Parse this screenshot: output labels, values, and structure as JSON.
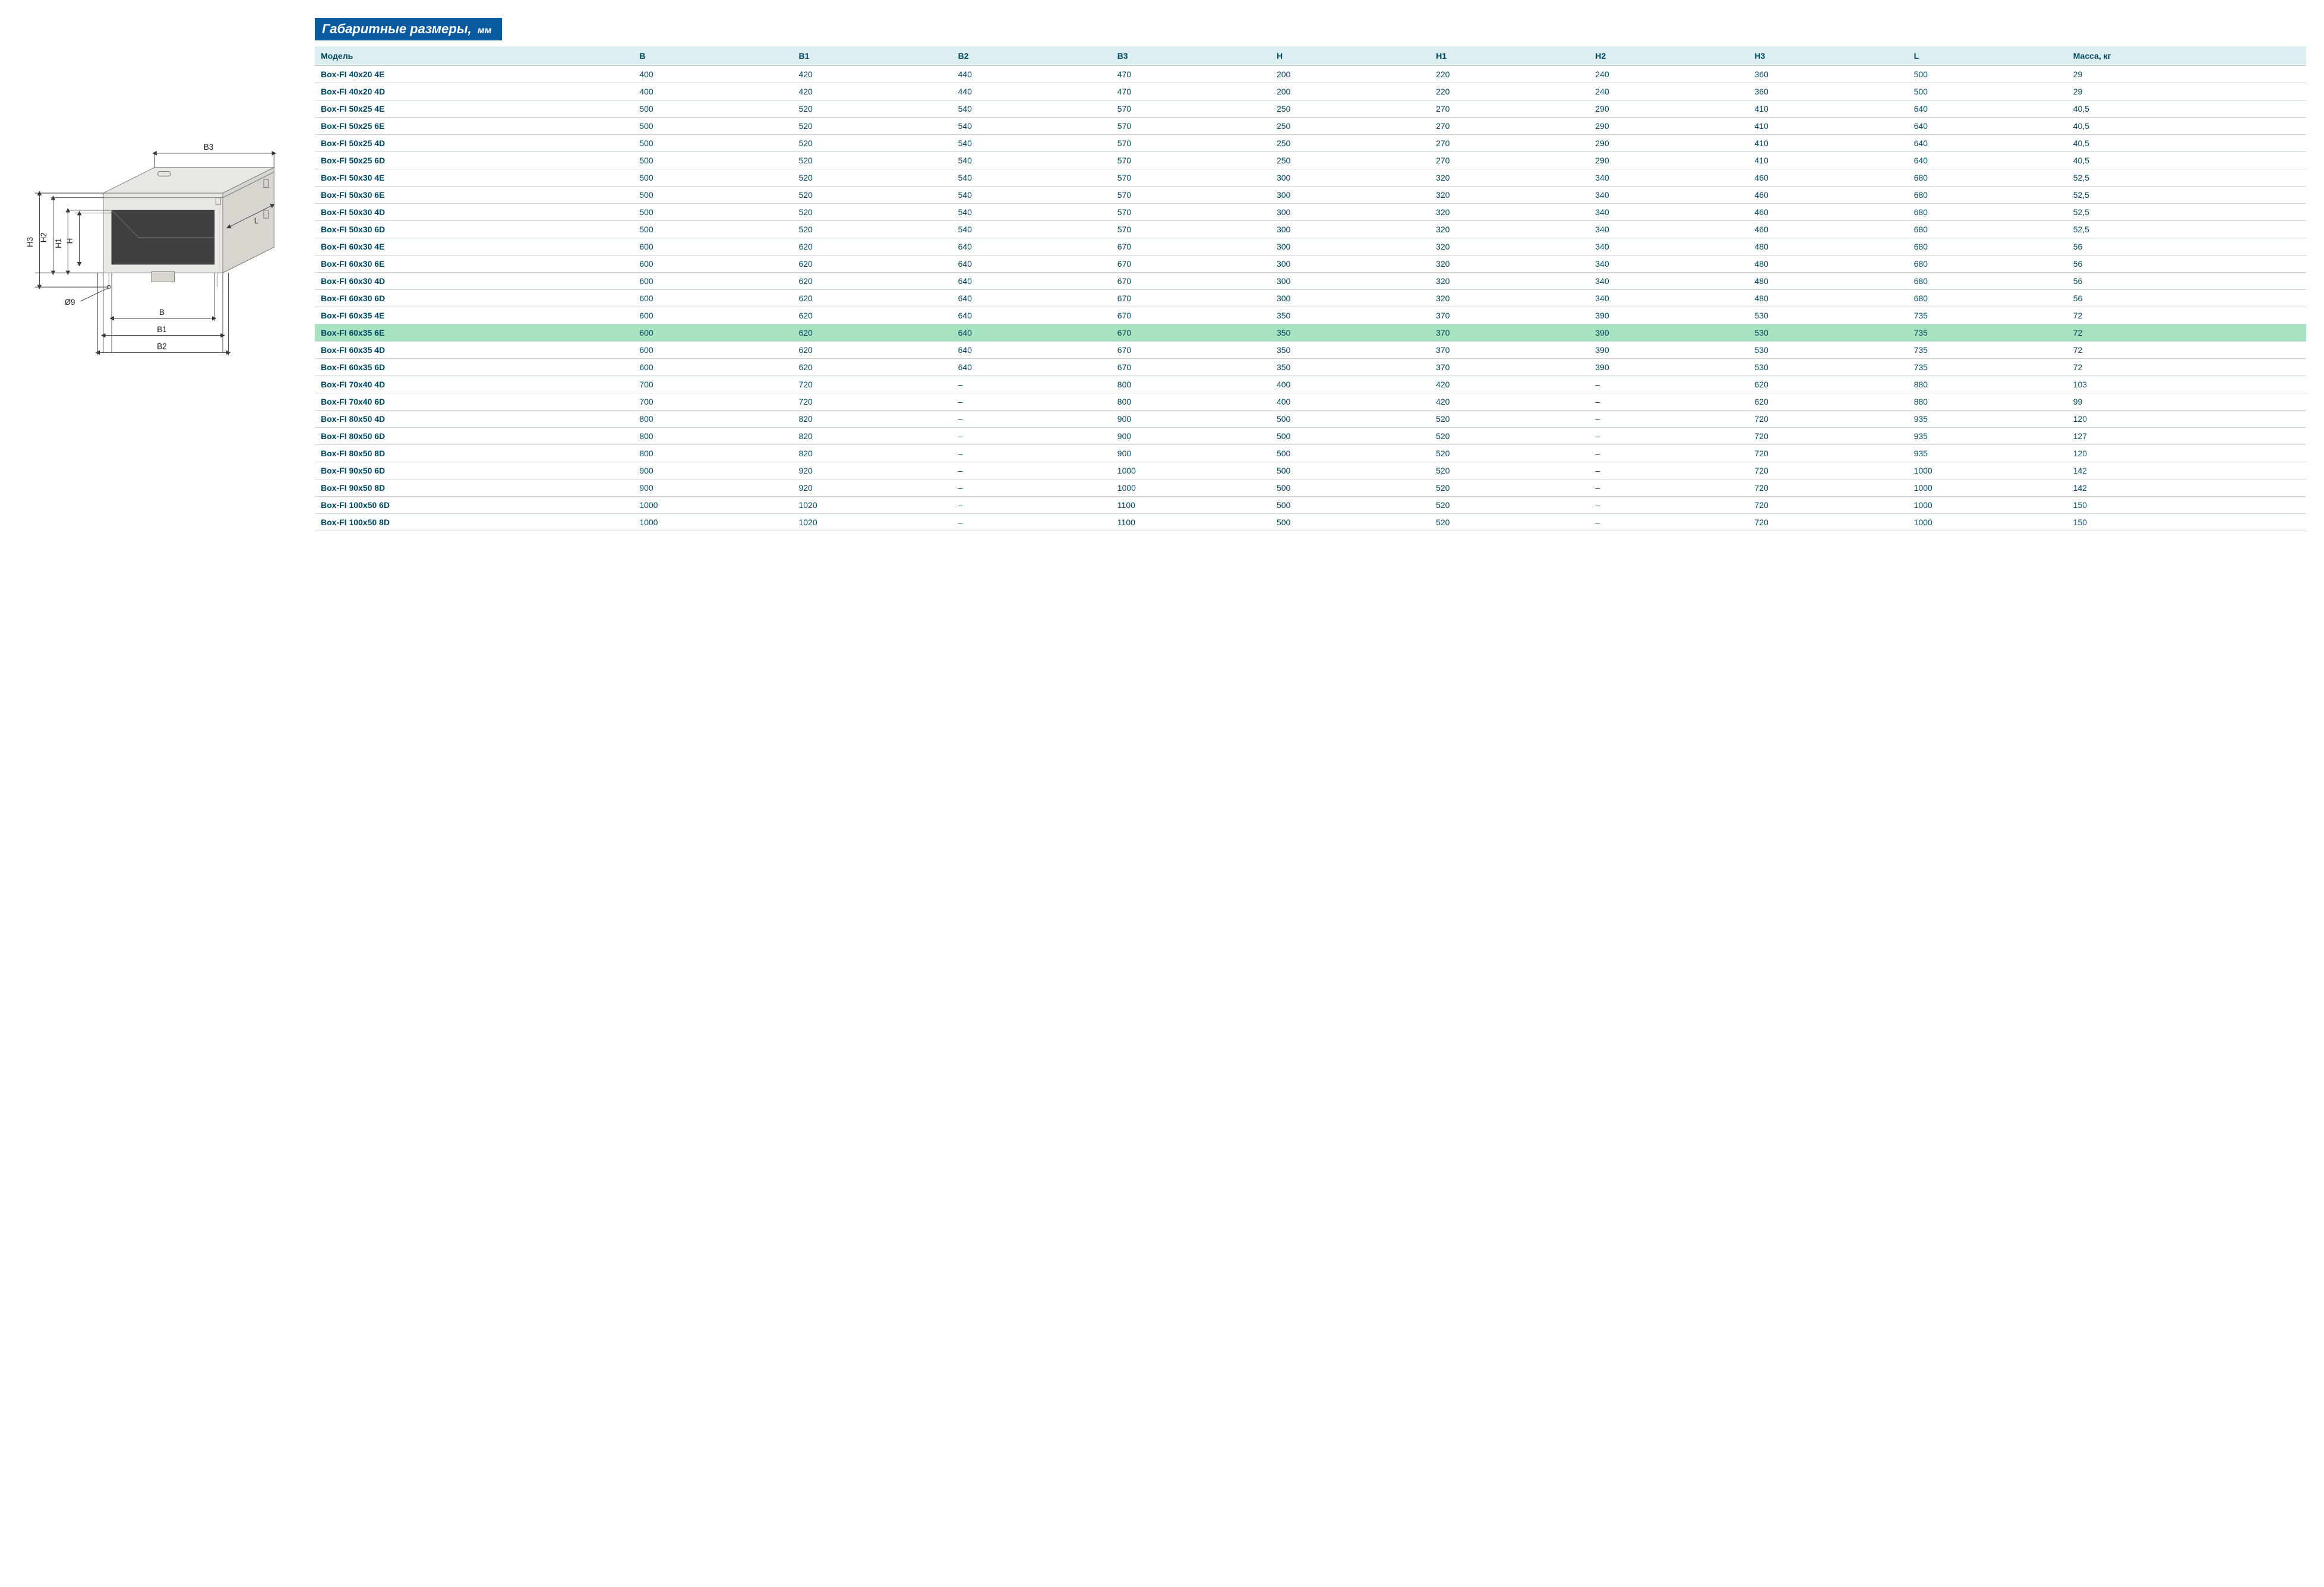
{
  "section": {
    "title_main": "Габаритные размеры,",
    "title_units": "мм"
  },
  "diagram": {
    "labels": {
      "B": "B",
      "B1": "B1",
      "B2": "B2",
      "B3": "B3",
      "H": "H",
      "H1": "H1",
      "H2": "H2",
      "H3": "H3",
      "L": "L",
      "hole": "Ø9"
    },
    "colors": {
      "face": "#e9e7e1",
      "shade": "#d7d5ce",
      "dark": "#3f3f3f",
      "edge": "#707070",
      "dim": "#3a3a3a",
      "text": "#1a1a1a"
    }
  },
  "table": {
    "columns": [
      "Модель",
      "B",
      "B1",
      "B2",
      "B3",
      "H",
      "H1",
      "H2",
      "H3",
      "L",
      "Масса, кг"
    ],
    "col_widths_pct": [
      16,
      8,
      8,
      8,
      8,
      8,
      8,
      8,
      8,
      8,
      12
    ],
    "header_bg": "#dceef0",
    "header_fg": "#004761",
    "cell_fg": "#004761",
    "row_border": "#c9d4d6",
    "highlight_bg": "#a7e3c0",
    "highlight_row_index": 15,
    "rows": [
      [
        "Box-FI 40x20 4E",
        "400",
        "420",
        "440",
        "470",
        "200",
        "220",
        "240",
        "360",
        "500",
        "29"
      ],
      [
        "Box-FI 40x20 4D",
        "400",
        "420",
        "440",
        "470",
        "200",
        "220",
        "240",
        "360",
        "500",
        "29"
      ],
      [
        "Box-FI 50x25 4E",
        "500",
        "520",
        "540",
        "570",
        "250",
        "270",
        "290",
        "410",
        "640",
        "40,5"
      ],
      [
        "Box-FI 50x25 6E",
        "500",
        "520",
        "540",
        "570",
        "250",
        "270",
        "290",
        "410",
        "640",
        "40,5"
      ],
      [
        "Box-FI 50x25 4D",
        "500",
        "520",
        "540",
        "570",
        "250",
        "270",
        "290",
        "410",
        "640",
        "40,5"
      ],
      [
        "Box-FI 50x25 6D",
        "500",
        "520",
        "540",
        "570",
        "250",
        "270",
        "290",
        "410",
        "640",
        "40,5"
      ],
      [
        "Box-FI 50x30 4E",
        "500",
        "520",
        "540",
        "570",
        "300",
        "320",
        "340",
        "460",
        "680",
        "52,5"
      ],
      [
        "Box-FI 50x30 6E",
        "500",
        "520",
        "540",
        "570",
        "300",
        "320",
        "340",
        "460",
        "680",
        "52,5"
      ],
      [
        "Box-FI 50x30 4D",
        "500",
        "520",
        "540",
        "570",
        "300",
        "320",
        "340",
        "460",
        "680",
        "52,5"
      ],
      [
        "Box-FI 50x30 6D",
        "500",
        "520",
        "540",
        "570",
        "300",
        "320",
        "340",
        "460",
        "680",
        "52,5"
      ],
      [
        "Box-FI 60x30 4E",
        "600",
        "620",
        "640",
        "670",
        "300",
        "320",
        "340",
        "480",
        "680",
        "56"
      ],
      [
        "Box-FI 60x30 6E",
        "600",
        "620",
        "640",
        "670",
        "300",
        "320",
        "340",
        "480",
        "680",
        "56"
      ],
      [
        "Box-FI 60x30 4D",
        "600",
        "620",
        "640",
        "670",
        "300",
        "320",
        "340",
        "480",
        "680",
        "56"
      ],
      [
        "Box-FI 60x30 6D",
        "600",
        "620",
        "640",
        "670",
        "300",
        "320",
        "340",
        "480",
        "680",
        "56"
      ],
      [
        "Box-FI 60x35 4E",
        "600",
        "620",
        "640",
        "670",
        "350",
        "370",
        "390",
        "530",
        "735",
        "72"
      ],
      [
        "Box-FI 60x35 6E",
        "600",
        "620",
        "640",
        "670",
        "350",
        "370",
        "390",
        "530",
        "735",
        "72"
      ],
      [
        "Box-FI 60x35 4D",
        "600",
        "620",
        "640",
        "670",
        "350",
        "370",
        "390",
        "530",
        "735",
        "72"
      ],
      [
        "Box-FI 60x35 6D",
        "600",
        "620",
        "640",
        "670",
        "350",
        "370",
        "390",
        "530",
        "735",
        "72"
      ],
      [
        "Box-FI 70x40 4D",
        "700",
        "720",
        "–",
        "800",
        "400",
        "420",
        "–",
        "620",
        "880",
        "103"
      ],
      [
        "Box-FI 70x40 6D",
        "700",
        "720",
        "–",
        "800",
        "400",
        "420",
        "–",
        "620",
        "880",
        "99"
      ],
      [
        "Box-FI 80x50 4D",
        "800",
        "820",
        "–",
        "900",
        "500",
        "520",
        "–",
        "720",
        "935",
        "120"
      ],
      [
        "Box-FI 80x50 6D",
        "800",
        "820",
        "–",
        "900",
        "500",
        "520",
        "–",
        "720",
        "935",
        "127"
      ],
      [
        "Box-FI 80x50 8D",
        "800",
        "820",
        "–",
        "900",
        "500",
        "520",
        "–",
        "720",
        "935",
        "120"
      ],
      [
        "Box-FI 90x50 6D",
        "900",
        "920",
        "–",
        "1000",
        "500",
        "520",
        "–",
        "720",
        "1000",
        "142"
      ],
      [
        "Box-FI 90x50 8D",
        "900",
        "920",
        "–",
        "1000",
        "500",
        "520",
        "–",
        "720",
        "1000",
        "142"
      ],
      [
        "Box-FI 100x50 6D",
        "1000",
        "1020",
        "–",
        "1100",
        "500",
        "520",
        "–",
        "720",
        "1000",
        "150"
      ],
      [
        "Box-FI 100x50 8D",
        "1000",
        "1020",
        "–",
        "1100",
        "500",
        "520",
        "–",
        "720",
        "1000",
        "150"
      ]
    ]
  }
}
